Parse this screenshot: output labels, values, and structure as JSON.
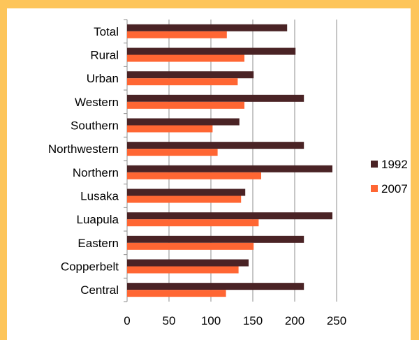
{
  "chart_data": {
    "type": "bar",
    "orientation": "horizontal",
    "categories": [
      "Total",
      "Rural",
      "Urban",
      "Western",
      "Southern",
      "Northwestern",
      "Northern",
      "Lusaka",
      "Luapula",
      "Eastern",
      "Copperbelt",
      "Central"
    ],
    "series": [
      {
        "name": "1992",
        "color": "#4A2325",
        "values": [
          191,
          201,
          151,
          211,
          134,
          211,
          245,
          141,
          245,
          211,
          145,
          211
        ]
      },
      {
        "name": "2007",
        "color": "#FF6633",
        "values": [
          119,
          140,
          132,
          140,
          102,
          108,
          160,
          136,
          157,
          151,
          133,
          118
        ]
      }
    ],
    "xlim": [
      0,
      250
    ],
    "xticks": [
      "0",
      "50",
      "100",
      "150",
      "200",
      "250"
    ],
    "grid": "vertical",
    "legend": "right",
    "title": "",
    "xlabel": "",
    "ylabel": ""
  }
}
